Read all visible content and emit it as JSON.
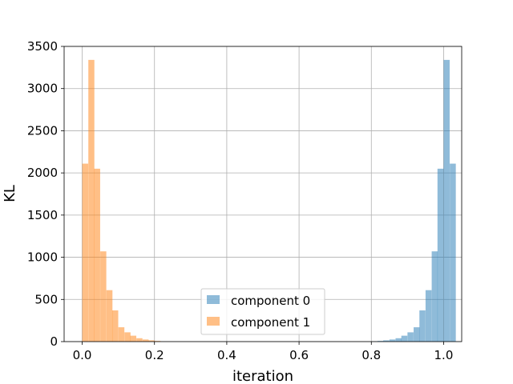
{
  "chart_data": {
    "type": "bar",
    "xlabel": "iteration",
    "ylabel": "KL",
    "xlim": [
      -0.05,
      1.05
    ],
    "ylim": [
      0,
      3500
    ],
    "xticks": [
      0.0,
      0.2,
      0.4,
      0.6,
      0.8,
      1.0
    ],
    "xtick_labels": [
      "0.0",
      "0.2",
      "0.4",
      "0.6",
      "0.8",
      "1.0"
    ],
    "yticks": [
      0,
      500,
      1000,
      1500,
      2000,
      2500,
      3000,
      3500
    ],
    "ytick_labels": [
      "0",
      "500",
      "1000",
      "1500",
      "2000",
      "2500",
      "3000",
      "3500"
    ],
    "grid": true,
    "legend_position": "lower-center",
    "bin_width": 0.0167,
    "series": [
      {
        "name": "component 0",
        "color": "#1f77b4",
        "alpha": 0.5,
        "bins": [
          [
            0.8,
            3
          ],
          [
            0.817,
            8
          ],
          [
            0.833,
            15
          ],
          [
            0.85,
            25
          ],
          [
            0.867,
            40
          ],
          [
            0.883,
            70
          ],
          [
            0.9,
            110
          ],
          [
            0.917,
            170
          ],
          [
            0.933,
            370
          ],
          [
            0.95,
            610
          ],
          [
            0.967,
            1070
          ],
          [
            0.983,
            2050
          ],
          [
            1.0,
            3340
          ],
          [
            1.017,
            2110
          ]
        ]
      },
      {
        "name": "component 1",
        "color": "#ff7f0e",
        "alpha": 0.5,
        "bins": [
          [
            0.0,
            2110
          ],
          [
            0.017,
            3340
          ],
          [
            0.033,
            2050
          ],
          [
            0.05,
            1070
          ],
          [
            0.067,
            610
          ],
          [
            0.083,
            370
          ],
          [
            0.1,
            170
          ],
          [
            0.117,
            110
          ],
          [
            0.133,
            70
          ],
          [
            0.15,
            40
          ],
          [
            0.167,
            25
          ],
          [
            0.183,
            15
          ],
          [
            0.2,
            8
          ]
        ]
      }
    ]
  }
}
